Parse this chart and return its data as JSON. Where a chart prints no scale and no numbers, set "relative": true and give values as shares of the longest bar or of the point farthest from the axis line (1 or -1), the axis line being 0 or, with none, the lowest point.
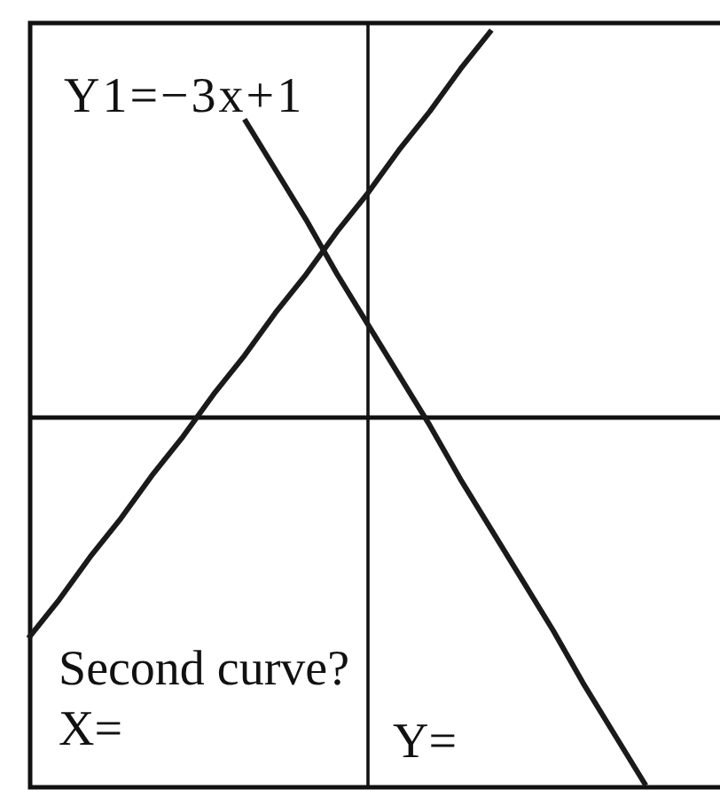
{
  "chart_data": {
    "type": "line",
    "relative": true,
    "categories": [
      null,
      null,
      null,
      null,
      null,
      null,
      null,
      null,
      null,
      null,
      null,
      null,
      null,
      null,
      null,
      null,
      null,
      null,
      null,
      null,
      null,
      null,
      null
    ],
    "series": [
      {
        "color": "#1a1a1a",
        "values": [
          -0.57,
          -0.47,
          -0.36,
          -0.26,
          -0.15,
          -0.05,
          0.06,
          0.16,
          0.27,
          0.37,
          0.48,
          0.58,
          0.69,
          0.79,
          0.9,
          1.0,
          null,
          null,
          null,
          null,
          null,
          null,
          null
        ]
      },
      {
        "name": "Y1=−3x+1",
        "color": "#1a1a1a",
        "values": [
          null,
          null,
          null,
          null,
          null,
          null,
          null,
          0.77,
          0.64,
          0.51,
          0.37,
          0.24,
          0.11,
          -0.02,
          -0.16,
          -0.29,
          -0.42,
          -0.55,
          -0.69,
          -0.82,
          -0.95,
          null,
          null
        ]
      }
    ],
    "annotations": [
      "Second curve?",
      "X=",
      "Y="
    ]
  }
}
